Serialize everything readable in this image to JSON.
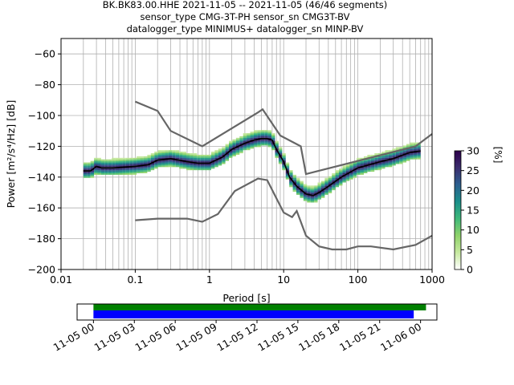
{
  "title_lines": [
    "BK.BK83.00.HHE   2021-11-05 -- 2021-11-05  (46/46 segments)",
    "sensor_type CMG-3T-PH sensor_sn CMG3T-BV",
    "datalogger_type MINIMUS+ datalogger_sn MINP-BV"
  ],
  "colors": {
    "noise_model": "#666666",
    "mean": "#000000",
    "grid": "#b0b0b0",
    "coverage_data": "#0000ff",
    "coverage_gaps": "#008000"
  },
  "chart_data": {
    "type": "heatmap",
    "xlabel": "Period [s]",
    "ylabel": "Power [m²/s⁴/Hz] [dB]",
    "xscale": "log",
    "xlim": [
      0.01,
      1000
    ],
    "ylim": [
      -200,
      -50
    ],
    "xticks": [
      {
        "value": 0.01,
        "label": "0.01"
      },
      {
        "value": 0.1,
        "label": "0.1"
      },
      {
        "value": 1,
        "label": "1"
      },
      {
        "value": 10,
        "label": "10"
      },
      {
        "value": 100,
        "label": "100"
      },
      {
        "value": 1000,
        "label": "1000"
      }
    ],
    "yticks": [
      -60,
      -80,
      -100,
      -120,
      -140,
      -160,
      -180,
      -200
    ],
    "grid": true,
    "colorbar": {
      "label": "[%]",
      "ticks": [
        0,
        5,
        10,
        15,
        20,
        25,
        30
      ],
      "range": [
        0,
        30
      ],
      "stops": [
        "#ffffff",
        "#c7e9a0",
        "#8fd26a",
        "#3fb97a",
        "#1a8f8a",
        "#2c5f8f",
        "#3b2d6e",
        "#2d004b"
      ]
    },
    "noise_models": [
      {
        "period": [
          0.1,
          0.2,
          0.3,
          0.8,
          4.5,
          5.2,
          9,
          17,
          20,
          600,
          1000
        ],
        "power": [
          -91,
          -97,
          -110,
          -120,
          -98,
          -96,
          -113,
          -120,
          -138,
          -120,
          -112
        ]
      },
      {
        "period": [
          0.1,
          0.2,
          0.5,
          0.8,
          1.3,
          2.2,
          4.5,
          6,
          10,
          13,
          15,
          20,
          30,
          45,
          70,
          100,
          150,
          300,
          600,
          1000
        ],
        "power": [
          -168,
          -167,
          -167,
          -169,
          -164,
          -149,
          -141,
          -142,
          -163,
          -166,
          -162,
          -178,
          -185,
          -187,
          -187,
          -185,
          -185,
          -187,
          -184,
          -178
        ]
      }
    ],
    "mean": {
      "period": [
        0.02,
        0.025,
        0.03,
        0.035,
        0.05,
        0.1,
        0.15,
        0.2,
        0.3,
        0.5,
        0.7,
        1.0,
        1.5,
        2,
        3,
        4,
        5,
        6,
        7,
        8,
        10,
        12,
        15,
        20,
        25,
        30,
        40,
        60,
        100,
        200,
        300,
        500,
        700
      ],
      "power": [
        -136,
        -136,
        -133,
        -134,
        -134,
        -133,
        -132,
        -129,
        -128,
        -130,
        -131,
        -131,
        -127,
        -122,
        -118,
        -116,
        -115,
        -115,
        -116,
        -122,
        -130,
        -140,
        -146,
        -151,
        -152,
        -150,
        -146,
        -140,
        -134,
        -130,
        -128,
        -124,
        -123
      ]
    },
    "spread": {
      "lower_offset": 4,
      "upper_offset": 5
    }
  },
  "coverage": {
    "xticks": [
      "11-05 00",
      "11-05 03",
      "11-05 06",
      "11-05 09",
      "11-05 12",
      "11-05 15",
      "11-05 18",
      "11-05 21",
      "11-06 00"
    ],
    "data_range_hours": [
      0,
      23.5
    ],
    "gap_range_hours": [
      0,
      24.4
    ],
    "range_hours": [
      -1.2,
      25.2
    ]
  }
}
